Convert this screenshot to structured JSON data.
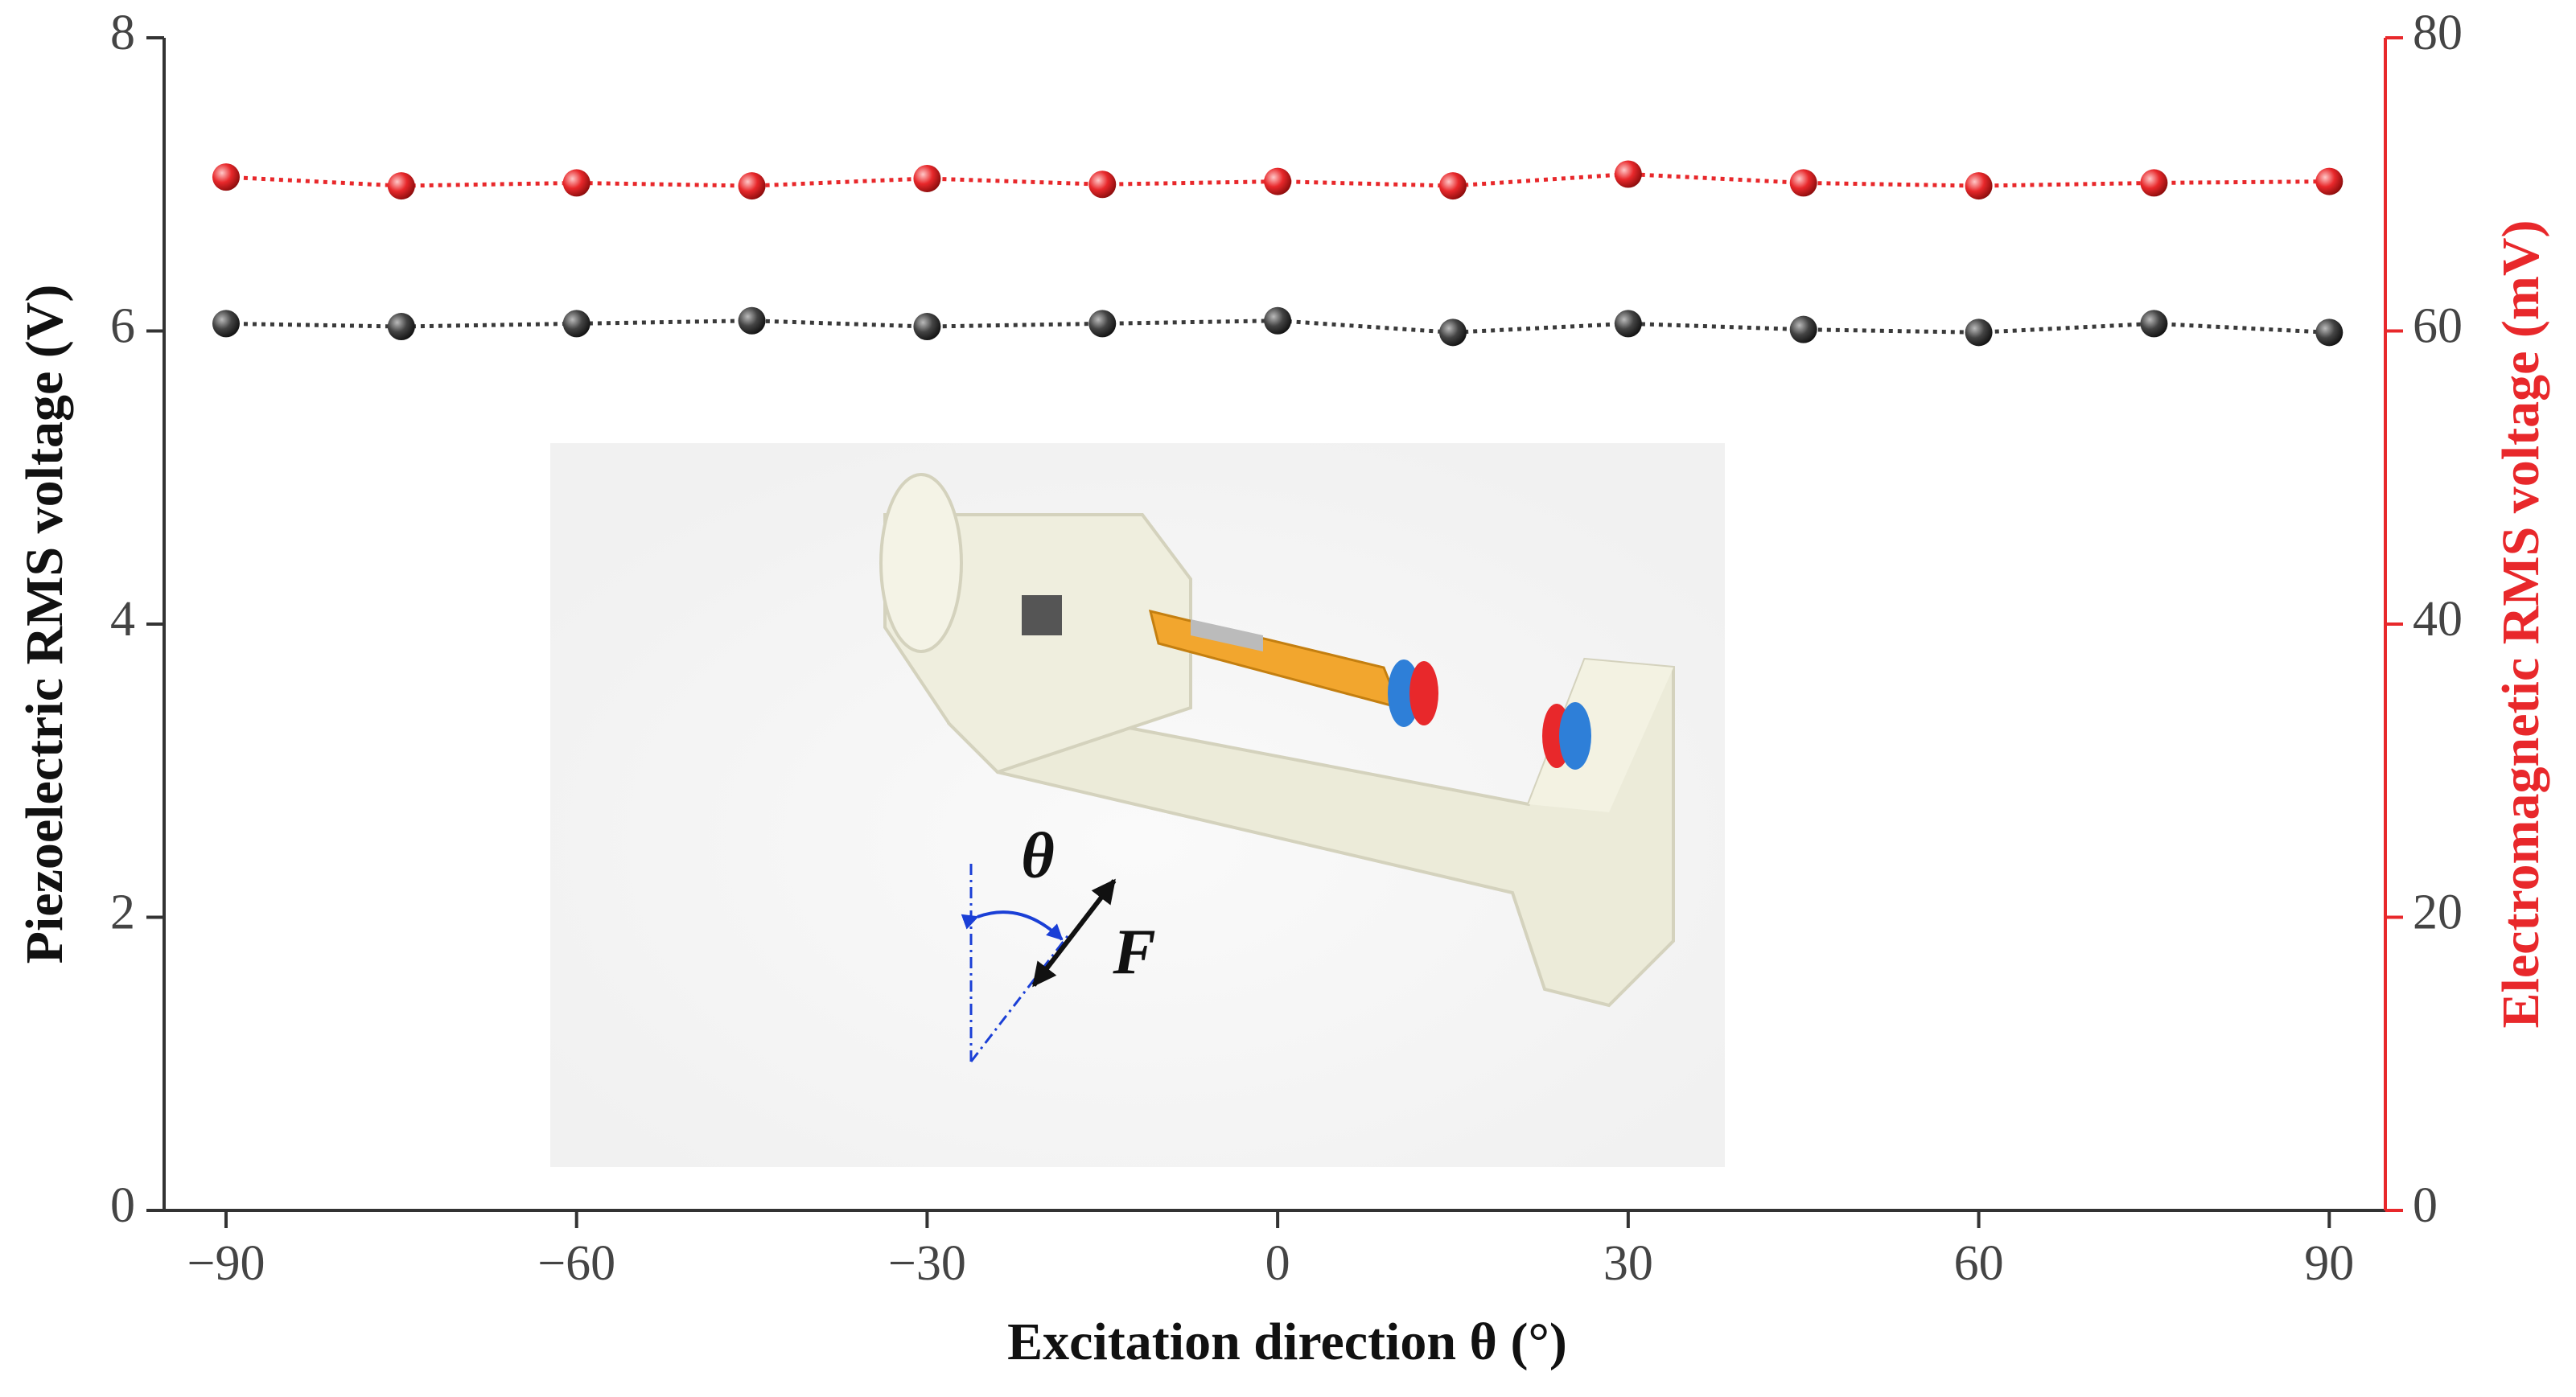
{
  "chart_data": {
    "type": "line",
    "x_label": "Excitation direction θ (°)",
    "y_label": "Piezoelectric RMS voltage (V)",
    "y2_label": "Electromagnetic RMS voltage (mV)",
    "x": [
      -90,
      -75,
      -60,
      -45,
      -30,
      -15,
      0,
      15,
      30,
      45,
      60,
      75,
      90
    ],
    "series": [
      {
        "color": "#3a3a3a",
        "axis": "y",
        "values": [
          6.05,
          6.03,
          6.05,
          6.07,
          6.03,
          6.05,
          6.07,
          5.99,
          6.05,
          6.01,
          5.99,
          6.05,
          5.99
        ]
      },
      {
        "color": "#e8282b",
        "axis": "y2",
        "values": [
          70.5,
          69.9,
          70.1,
          69.9,
          70.4,
          70.0,
          70.2,
          69.9,
          70.7,
          70.1,
          69.9,
          70.1,
          70.2
        ]
      }
    ],
    "xlim": [
      -95.3,
      94.8
    ],
    "xticks": [
      {
        "value": -90,
        "label": "−90"
      },
      {
        "value": -60,
        "label": "−60"
      },
      {
        "value": -30,
        "label": "−30"
      },
      0,
      30,
      60,
      90
    ],
    "ylim": [
      0,
      8
    ],
    "yticks": [
      0,
      2,
      4,
      6,
      8
    ],
    "y2lim": [
      0,
      80
    ],
    "y2ticks": [
      0,
      20,
      40,
      60,
      80
    ],
    "y2_color": "#e8282b",
    "annotations": [
      "θ",
      "F"
    ]
  }
}
